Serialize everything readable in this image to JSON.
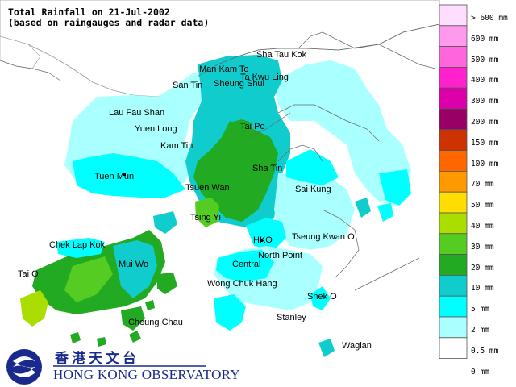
{
  "title": {
    "line1": "Total Rainfall on 21-Jul-2002",
    "line2": "(based on raingauges and radar data)"
  },
  "places": [
    {
      "name": "Sha Tau Kok",
      "key": "sha-tau-kok"
    },
    {
      "name": "Man Kam To",
      "key": "man-kam-to"
    },
    {
      "name": "Ta Kwu Ling",
      "key": "ta-kwu-ling"
    },
    {
      "name": "San Tin",
      "key": "san-tin"
    },
    {
      "name": "Sheung Shui",
      "key": "sheung-shui"
    },
    {
      "name": "Lau Fau Shan",
      "key": "lau-fau-shan"
    },
    {
      "name": "Yuen Long",
      "key": "yuen-long"
    },
    {
      "name": "Tai Po",
      "key": "tai-po"
    },
    {
      "name": "Kam Tin",
      "key": "kam-tin"
    },
    {
      "name": "Tuen Mun",
      "key": "tuen-mun"
    },
    {
      "name": "Sha Tin",
      "key": "sha-tin"
    },
    {
      "name": "Tsuen Wan",
      "key": "tsuen-wan"
    },
    {
      "name": "Sai Kung",
      "key": "sai-kung"
    },
    {
      "name": "Tsing Yi",
      "key": "tsing-yi"
    },
    {
      "name": "Chek Lap Kok",
      "key": "chek-lap-kok"
    },
    {
      "name": "HKO",
      "key": "hko"
    },
    {
      "name": "Tseung Kwan O",
      "key": "tseung-kwan-o"
    },
    {
      "name": "North Point",
      "key": "north-point"
    },
    {
      "name": "Mui Wo",
      "key": "mui-wo"
    },
    {
      "name": "Central",
      "key": "central"
    },
    {
      "name": "Tai O",
      "key": "tai-o"
    },
    {
      "name": "Wong Chuk Hang",
      "key": "wong-chuk-hang"
    },
    {
      "name": "Shek O",
      "key": "shek-o"
    },
    {
      "name": "Cheung Chau",
      "key": "cheung-chau"
    },
    {
      "name": "Stanley",
      "key": "stanley"
    },
    {
      "name": "Waglan",
      "key": "waglan"
    }
  ],
  "legend": [
    {
      "label": "> 600 mm",
      "color": "#ffddff"
    },
    {
      "label": "600 mm",
      "color": "#ff99ee"
    },
    {
      "label": "500 mm",
      "color": "#ff66dd"
    },
    {
      "label": "400 mm",
      "color": "#ff22cc"
    },
    {
      "label": "300 mm",
      "color": "#dd00aa"
    },
    {
      "label": "200 mm",
      "color": "#990066"
    },
    {
      "label": "150 mm",
      "color": "#cc3300"
    },
    {
      "label": "100 mm",
      "color": "#ff6600"
    },
    {
      "label": "70 mm",
      "color": "#ff9900"
    },
    {
      "label": "50 mm",
      "color": "#ffdd00"
    },
    {
      "label": "40 mm",
      "color": "#aadd00"
    },
    {
      "label": "30 mm",
      "color": "#55cc22"
    },
    {
      "label": "20 mm",
      "color": "#22aa22"
    },
    {
      "label": "10 mm",
      "color": "#11cccc"
    },
    {
      "label": "5 mm",
      "color": "#00ffff"
    },
    {
      "label": "2 mm",
      "color": "#aaffff"
    },
    {
      "label": "0.5 mm",
      "color": "#ffffff"
    },
    {
      "label": "0 mm",
      "color": ""
    }
  ],
  "logo": {
    "chinese": "香港天文台",
    "english": "HONG KONG OBSERVATORY"
  }
}
